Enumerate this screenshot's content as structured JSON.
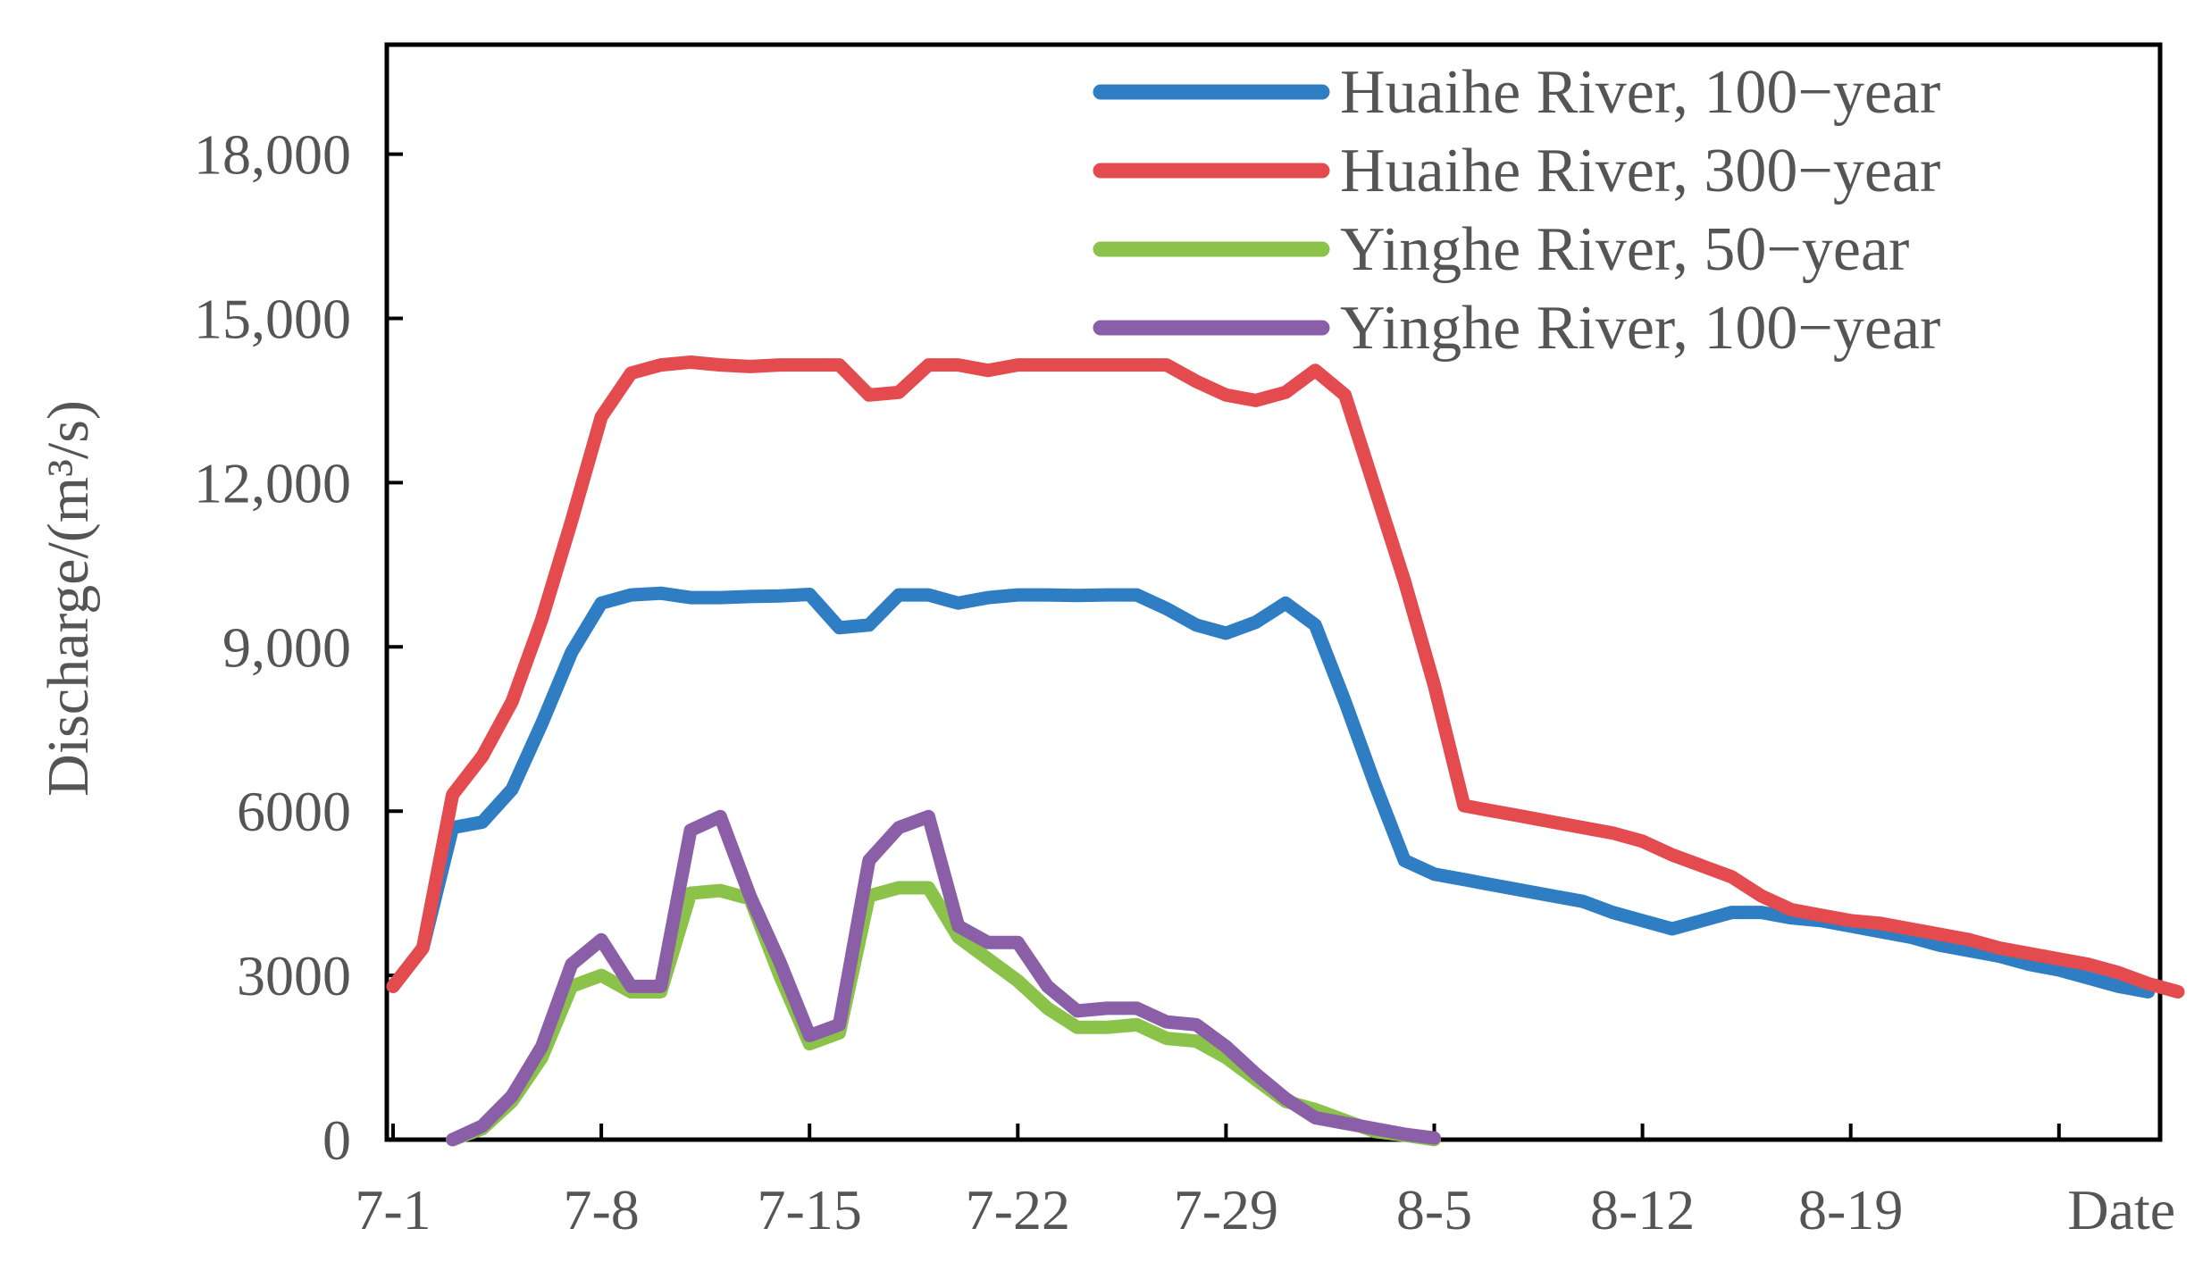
{
  "chart_data": {
    "type": "line",
    "xlabel": "Date",
    "ylabel": "Discharge/(m³/s)",
    "ylim": [
      0,
      20000
    ],
    "x_range_days": [
      0,
      52
    ],
    "x_ticks": [
      {
        "label": "7-1",
        "day": 0
      },
      {
        "label": "7-8",
        "day": 7
      },
      {
        "label": "7-15",
        "day": 14
      },
      {
        "label": "7-22",
        "day": 21
      },
      {
        "label": "7-29",
        "day": 28
      },
      {
        "label": "8-5",
        "day": 35
      },
      {
        "label": "8-12",
        "day": 42
      },
      {
        "label": "8-19",
        "day": 49
      }
    ],
    "y_ticks": [
      {
        "label": "0",
        "value": 0
      },
      {
        "label": "3000",
        "value": 3000
      },
      {
        "label": "6000",
        "value": 6000
      },
      {
        "label": "9,000",
        "value": 9000
      },
      {
        "label": "12,000",
        "value": 12000
      },
      {
        "label": "15,000",
        "value": 15000
      },
      {
        "label": "18,000",
        "value": 18000
      }
    ],
    "legend_position": "top-right",
    "grid": false,
    "series": [
      {
        "name": "Huaihe River, 100−year",
        "color": "#2f7dc2",
        "points": [
          [
            0,
            2800
          ],
          [
            1,
            3500
          ],
          [
            2,
            5700
          ],
          [
            3,
            5800
          ],
          [
            4,
            6400
          ],
          [
            5,
            7600
          ],
          [
            6,
            8900
          ],
          [
            7,
            9800
          ],
          [
            8,
            9950
          ],
          [
            9,
            9980
          ],
          [
            10,
            9900
          ],
          [
            11,
            9900
          ],
          [
            12,
            9920
          ],
          [
            13,
            9930
          ],
          [
            14,
            9960
          ],
          [
            15,
            9350
          ],
          [
            16,
            9400
          ],
          [
            17,
            9950
          ],
          [
            18,
            9950
          ],
          [
            19,
            9800
          ],
          [
            20,
            9900
          ],
          [
            21,
            9950
          ],
          [
            22,
            9950
          ],
          [
            23,
            9940
          ],
          [
            24,
            9950
          ],
          [
            25,
            9950
          ],
          [
            26,
            9700
          ],
          [
            27,
            9400
          ],
          [
            28,
            9250
          ],
          [
            29,
            9450
          ],
          [
            30,
            9800
          ],
          [
            31,
            9400
          ],
          [
            32,
            8000
          ],
          [
            33,
            6500
          ],
          [
            34,
            5100
          ],
          [
            35,
            4850
          ],
          [
            36,
            4750
          ],
          [
            37,
            4650
          ],
          [
            38,
            4550
          ],
          [
            39,
            4450
          ],
          [
            40,
            4350
          ],
          [
            41,
            4150
          ],
          [
            42,
            4000
          ],
          [
            43,
            3850
          ],
          [
            44,
            4000
          ],
          [
            45,
            4150
          ],
          [
            46,
            4150
          ],
          [
            47,
            4050
          ],
          [
            48,
            4000
          ],
          [
            49,
            3900
          ],
          [
            50,
            3800
          ],
          [
            51,
            3700
          ],
          [
            52,
            3550
          ],
          [
            53,
            3450
          ],
          [
            54,
            3350
          ],
          [
            55,
            3200
          ],
          [
            56,
            3100
          ],
          [
            57,
            2950
          ],
          [
            58,
            2800
          ],
          [
            59,
            2700
          ]
        ]
      },
      {
        "name": "Huaihe River, 300−year",
        "color": "#e34b4f",
        "points": [
          [
            0,
            2800
          ],
          [
            1,
            3500
          ],
          [
            2,
            6300
          ],
          [
            3,
            7000
          ],
          [
            4,
            8000
          ],
          [
            5,
            9500
          ],
          [
            6,
            11300
          ],
          [
            7,
            13200
          ],
          [
            8,
            14000
          ],
          [
            9,
            14150
          ],
          [
            10,
            14200
          ],
          [
            11,
            14150
          ],
          [
            12,
            14120
          ],
          [
            13,
            14150
          ],
          [
            14,
            14150
          ],
          [
            15,
            14150
          ],
          [
            16,
            13600
          ],
          [
            17,
            13650
          ],
          [
            18,
            14150
          ],
          [
            19,
            14150
          ],
          [
            20,
            14050
          ],
          [
            21,
            14150
          ],
          [
            22,
            14150
          ],
          [
            23,
            14150
          ],
          [
            24,
            14150
          ],
          [
            25,
            14150
          ],
          [
            26,
            14150
          ],
          [
            27,
            13850
          ],
          [
            28,
            13600
          ],
          [
            29,
            13500
          ],
          [
            30,
            13650
          ],
          [
            31,
            14050
          ],
          [
            32,
            13600
          ],
          [
            33,
            11900
          ],
          [
            34,
            10200
          ],
          [
            35,
            8300
          ],
          [
            36,
            6100
          ],
          [
            37,
            6000
          ],
          [
            38,
            5900
          ],
          [
            39,
            5800
          ],
          [
            40,
            5700
          ],
          [
            41,
            5600
          ],
          [
            42,
            5450
          ],
          [
            43,
            5200
          ],
          [
            44,
            5000
          ],
          [
            45,
            4800
          ],
          [
            46,
            4450
          ],
          [
            47,
            4200
          ],
          [
            48,
            4100
          ],
          [
            49,
            4000
          ],
          [
            50,
            3950
          ],
          [
            51,
            3850
          ],
          [
            52,
            3750
          ],
          [
            53,
            3650
          ],
          [
            54,
            3500
          ],
          [
            55,
            3400
          ],
          [
            56,
            3300
          ],
          [
            57,
            3200
          ],
          [
            58,
            3050
          ],
          [
            59,
            2850
          ],
          [
            60,
            2700
          ]
        ]
      },
      {
        "name": "Yinghe River, 50−year",
        "color": "#8bc34a",
        "points": [
          [
            2,
            0
          ],
          [
            3,
            200
          ],
          [
            4,
            700
          ],
          [
            5,
            1500
          ],
          [
            6,
            2800
          ],
          [
            7,
            3000
          ],
          [
            8,
            2700
          ],
          [
            9,
            2700
          ],
          [
            10,
            4500
          ],
          [
            11,
            4550
          ],
          [
            12,
            4400
          ],
          [
            13,
            3000
          ],
          [
            14,
            1750
          ],
          [
            15,
            1950
          ],
          [
            16,
            4450
          ],
          [
            17,
            4600
          ],
          [
            18,
            4600
          ],
          [
            19,
            3700
          ],
          [
            20,
            3300
          ],
          [
            21,
            2900
          ],
          [
            22,
            2400
          ],
          [
            23,
            2050
          ],
          [
            24,
            2050
          ],
          [
            25,
            2100
          ],
          [
            26,
            1850
          ],
          [
            27,
            1800
          ],
          [
            28,
            1500
          ],
          [
            29,
            1100
          ],
          [
            30,
            700
          ],
          [
            31,
            550
          ],
          [
            32,
            350
          ],
          [
            33,
            150
          ],
          [
            34,
            80
          ],
          [
            35,
            0
          ]
        ]
      },
      {
        "name": "Yinghe River, 100−year",
        "color": "#8b5fa8",
        "points": [
          [
            2,
            0
          ],
          [
            3,
            250
          ],
          [
            4,
            800
          ],
          [
            5,
            1700
          ],
          [
            6,
            3200
          ],
          [
            7,
            3650
          ],
          [
            8,
            2800
          ],
          [
            9,
            2800
          ],
          [
            10,
            5650
          ],
          [
            11,
            5900
          ],
          [
            12,
            4450
          ],
          [
            13,
            3250
          ],
          [
            14,
            1900
          ],
          [
            15,
            2100
          ],
          [
            16,
            5100
          ],
          [
            17,
            5700
          ],
          [
            18,
            5900
          ],
          [
            19,
            3900
          ],
          [
            20,
            3600
          ],
          [
            21,
            3600
          ],
          [
            22,
            2800
          ],
          [
            23,
            2350
          ],
          [
            24,
            2400
          ],
          [
            25,
            2400
          ],
          [
            26,
            2150
          ],
          [
            27,
            2100
          ],
          [
            28,
            1700
          ],
          [
            29,
            1200
          ],
          [
            30,
            750
          ],
          [
            31,
            400
          ],
          [
            32,
            300
          ],
          [
            33,
            200
          ],
          [
            34,
            100
          ],
          [
            35,
            30
          ]
        ]
      }
    ]
  }
}
